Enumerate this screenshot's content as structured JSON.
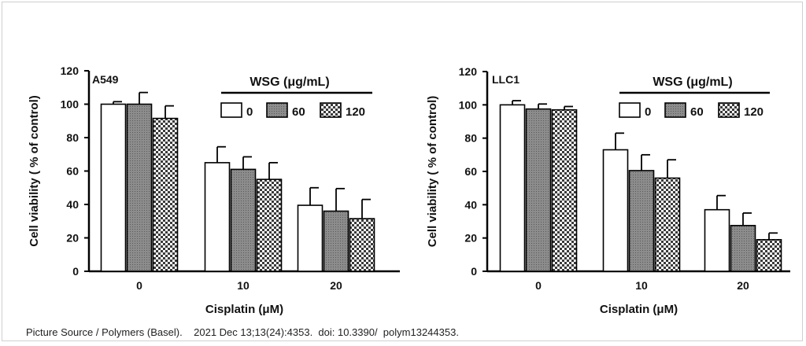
{
  "chart_data": [
    {
      "type": "bar",
      "panel_label": "A549",
      "categories": [
        "0",
        "10",
        "20"
      ],
      "series": [
        {
          "name": "0",
          "pattern": "white",
          "values": [
            100,
            65,
            39.5
          ],
          "errors": [
            1.5,
            9.5,
            10.5
          ]
        },
        {
          "name": "60",
          "pattern": "gray",
          "values": [
            100,
            61,
            36
          ],
          "errors": [
            7,
            7.5,
            13.5
          ]
        },
        {
          "name": "120",
          "pattern": "checker",
          "values": [
            91.5,
            55,
            31.5
          ],
          "errors": [
            7.5,
            10,
            11.5
          ]
        }
      ],
      "xlabel": "Cisplatin (μM)",
      "ylabel": "Cell viability ( % of control)",
      "ylim": [
        0,
        120
      ],
      "yticks": [
        "0",
        "20",
        "40",
        "60",
        "80",
        "100",
        "120"
      ],
      "legend_title": "WSG (μg/mL)",
      "legend_position": "top-right"
    },
    {
      "type": "bar",
      "panel_label": "LLC1",
      "categories": [
        "0",
        "10",
        "20"
      ],
      "series": [
        {
          "name": "0",
          "pattern": "white",
          "values": [
            100,
            73,
            37
          ],
          "errors": [
            2.5,
            10,
            8.5
          ]
        },
        {
          "name": "60",
          "pattern": "gray",
          "values": [
            97.5,
            60.5,
            27.5
          ],
          "errors": [
            3,
            9.5,
            7.5
          ]
        },
        {
          "name": "120",
          "pattern": "checker",
          "values": [
            97,
            56,
            19
          ],
          "errors": [
            2,
            11,
            4
          ]
        }
      ],
      "xlabel": "Cisplatin (μM)",
      "ylabel": "Cell viability ( % of control)",
      "ylim": [
        0,
        120
      ],
      "yticks": [
        "0",
        "20",
        "40",
        "60",
        "80",
        "100",
        "120"
      ],
      "legend_title": "WSG (μg/mL)",
      "legend_position": "top-right"
    }
  ],
  "caption": "Picture Source / Polymers (Basel).    2021 Dec 13;13(24):4353.  doi: 10.3390/  polym13244353.",
  "colors": {
    "bar_fill_gray": "#8c8c8c",
    "bar_stroke": "#000000",
    "checker_dark": "#3a3a3a",
    "checker_light": "#ffffff"
  }
}
